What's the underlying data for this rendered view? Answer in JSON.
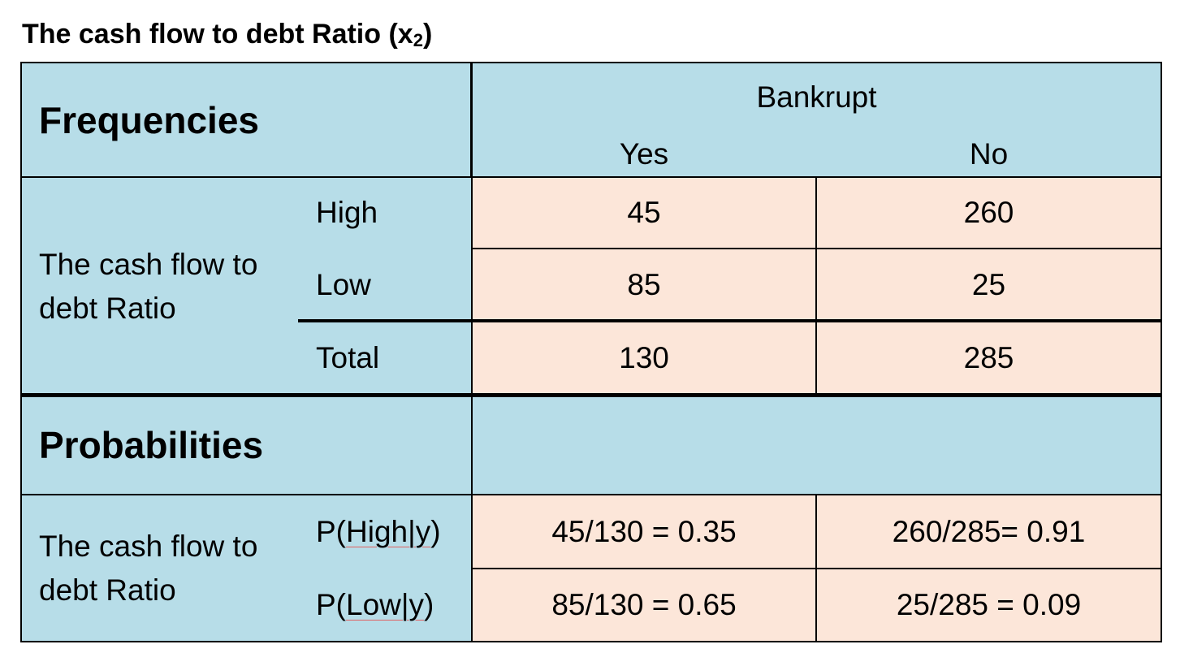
{
  "title": {
    "main": "The cash flow to debt Ratio (x",
    "sub": "2",
    "close": ")"
  },
  "freq": {
    "heading": "Frequencies",
    "bankrupt": "Bankrupt",
    "yes": "Yes",
    "no": "No",
    "row_label": "The cash flow to debt Ratio",
    "rows": [
      {
        "label": "High",
        "yes": "45",
        "no": "260"
      },
      {
        "label": "Low",
        "yes": "85",
        "no": "25"
      },
      {
        "label": "Total",
        "yes": "130",
        "no": "285"
      }
    ]
  },
  "prob": {
    "heading": "Probabilities",
    "row_label": "The cash flow to debt Ratio",
    "rows": [
      {
        "p": "P(",
        "cond": "High|y",
        "close": ")",
        "yes": "45/130 = 0.35",
        "no": "260/285= 0.91"
      },
      {
        "p": "P(",
        "cond": "Low|y",
        "close": ")",
        "yes": "85/130 = 0.65",
        "no": "25/285 = 0.09"
      }
    ]
  }
}
